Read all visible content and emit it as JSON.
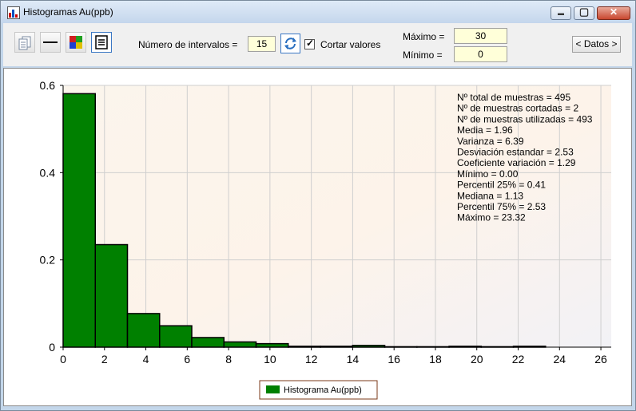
{
  "window": {
    "title": "Histogramas Au(ppb)"
  },
  "titlebar_buttons": {
    "minimize": "▬",
    "maximize": "▢",
    "close": "✕"
  },
  "toolbar": {
    "buttons": [
      "copy-icon",
      "line-icon",
      "colors-icon",
      "stats-icon"
    ],
    "intervals_label": "Número de intervalos =",
    "intervals_value": "15",
    "refresh_icon": "refresh-icon",
    "cut_values_label": "Cortar valores",
    "cut_values_checked": true,
    "max_label": "Máximo =",
    "max_value": "30",
    "min_label": "Mínimo =",
    "min_value": "0",
    "datos_button": "< Datos >"
  },
  "chart_data": {
    "type": "bar",
    "title": "",
    "xlabel": "",
    "ylabel": "",
    "bar_color": "#008000",
    "bin_width": 1.555,
    "bin_start": 0,
    "values": [
      0.581,
      0.235,
      0.077,
      0.049,
      0.022,
      0.012,
      0.008,
      0.002,
      0.002,
      0.004,
      0.001,
      0.001,
      0.002,
      0.001,
      0.002
    ],
    "xlim": [
      0,
      26.5
    ],
    "ylim": [
      0,
      0.6
    ],
    "x_ticks": [
      "0",
      "2",
      "4",
      "6",
      "8",
      "10",
      "12",
      "14",
      "16",
      "18",
      "20",
      "22",
      "24",
      "26"
    ],
    "y_ticks": [
      "0",
      "0.2",
      "0.4",
      "0.6"
    ],
    "grid": true,
    "legend": {
      "placement": "bottom-center",
      "label": "Histograma Au(ppb)"
    },
    "stats": [
      "Nº total de muestras = 495",
      "Nº de muestras cortadas = 2",
      "Nº de muestras utilizadas = 493",
      "Media = 1.96",
      "Varianza = 6.39",
      "Desviación estandar = 2.53",
      "Coeficiente variación = 1.29",
      "Mínimo = 0.00",
      "Percentil 25% = 0.41",
      "Mediana = 1.13",
      "Percentil 75% = 2.53",
      "Máximo = 23.32"
    ]
  }
}
